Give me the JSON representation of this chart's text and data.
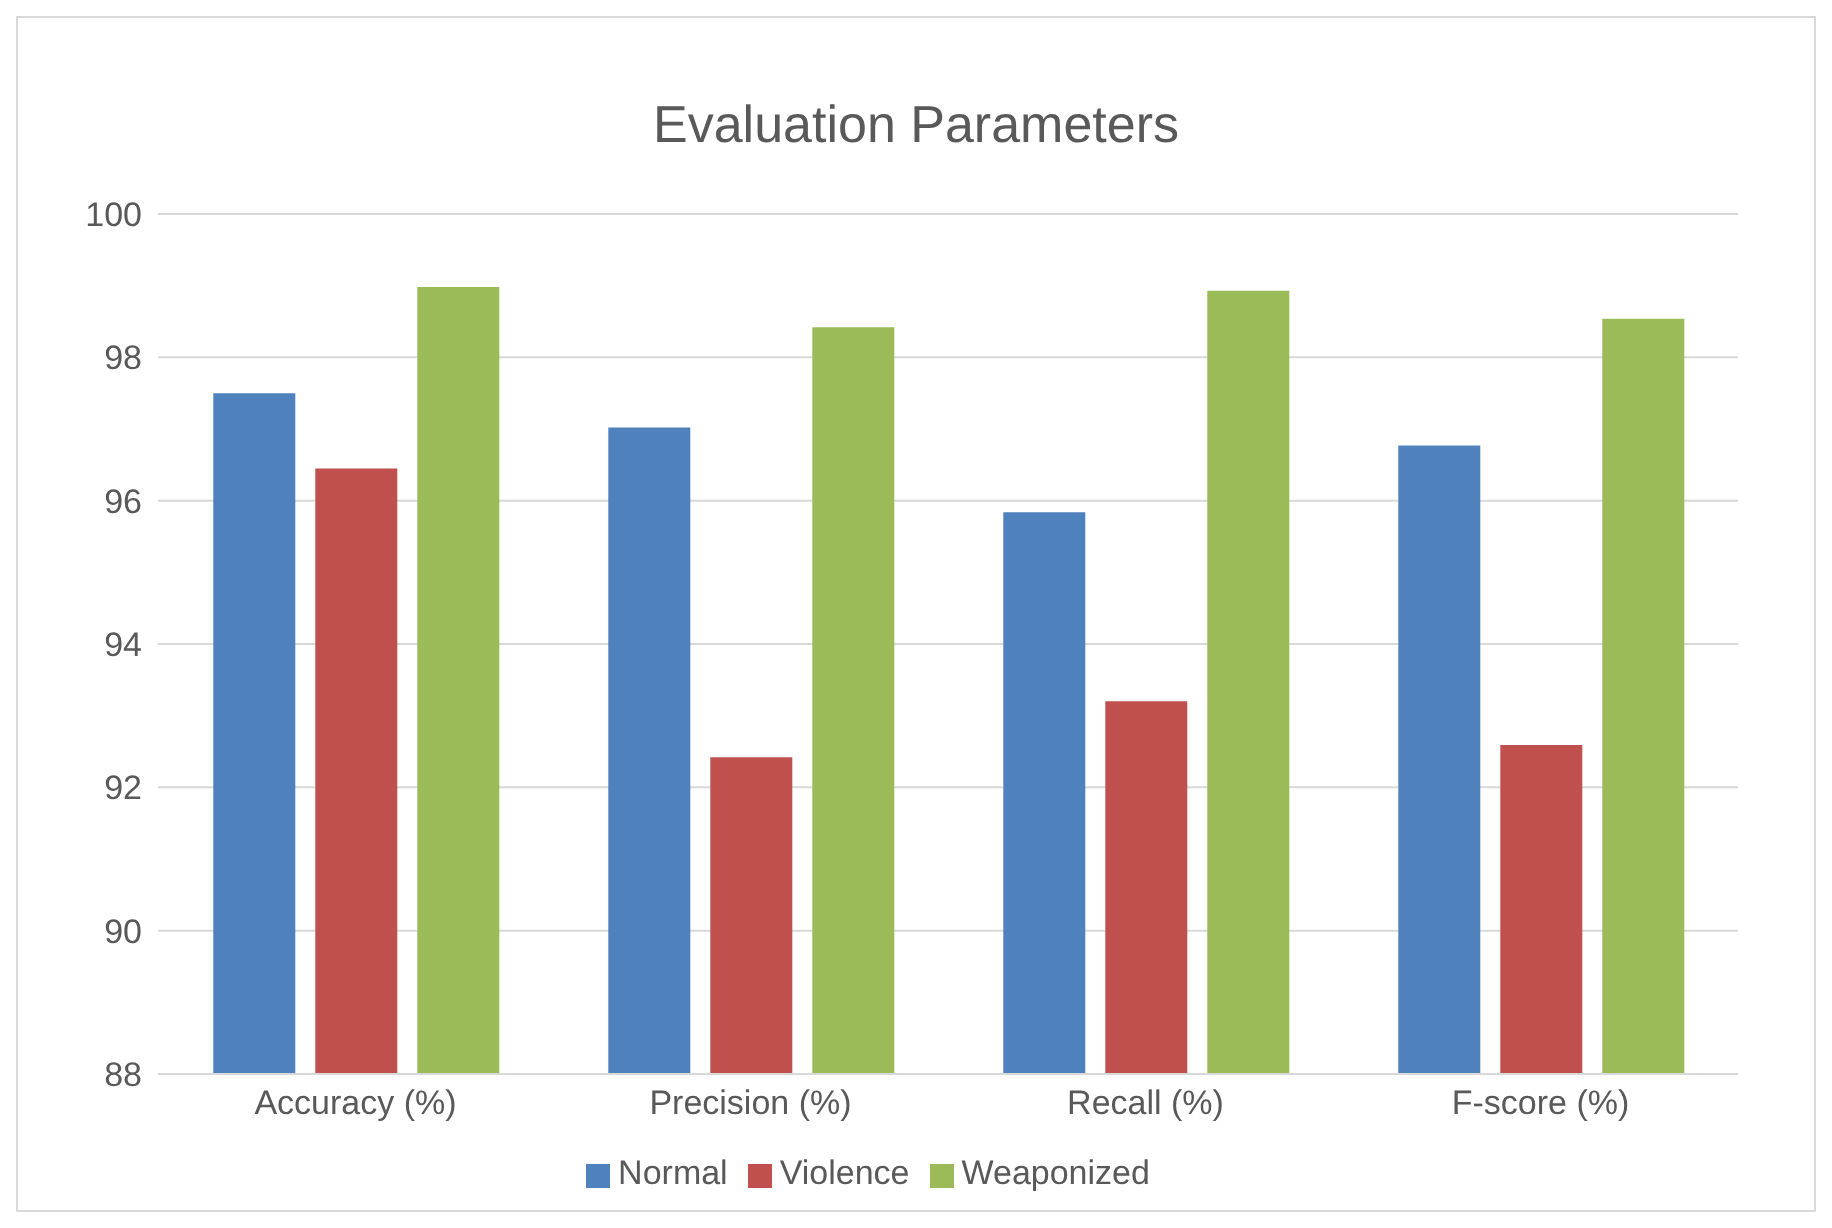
{
  "chart_data": {
    "type": "bar",
    "title": "Evaluation Parameters",
    "categories": [
      "Accuracy (%)",
      "Precision (%)",
      "Recall (%)",
      "F-score (%)"
    ],
    "series": [
      {
        "name": "Normal",
        "color": "#4f81bd",
        "values": [
          97.5,
          97.02,
          95.84,
          96.77
        ]
      },
      {
        "name": "Violence",
        "color": "#c0504d",
        "values": [
          96.45,
          92.42,
          93.2,
          92.59
        ]
      },
      {
        "name": "Weaponized",
        "color": "#9bbb59",
        "values": [
          98.98,
          98.42,
          98.93,
          98.54
        ]
      }
    ],
    "ylim": [
      88,
      100
    ],
    "yticks": [
      88,
      90,
      92,
      94,
      96,
      98,
      100
    ],
    "grid": "y",
    "legend": "bottom"
  }
}
